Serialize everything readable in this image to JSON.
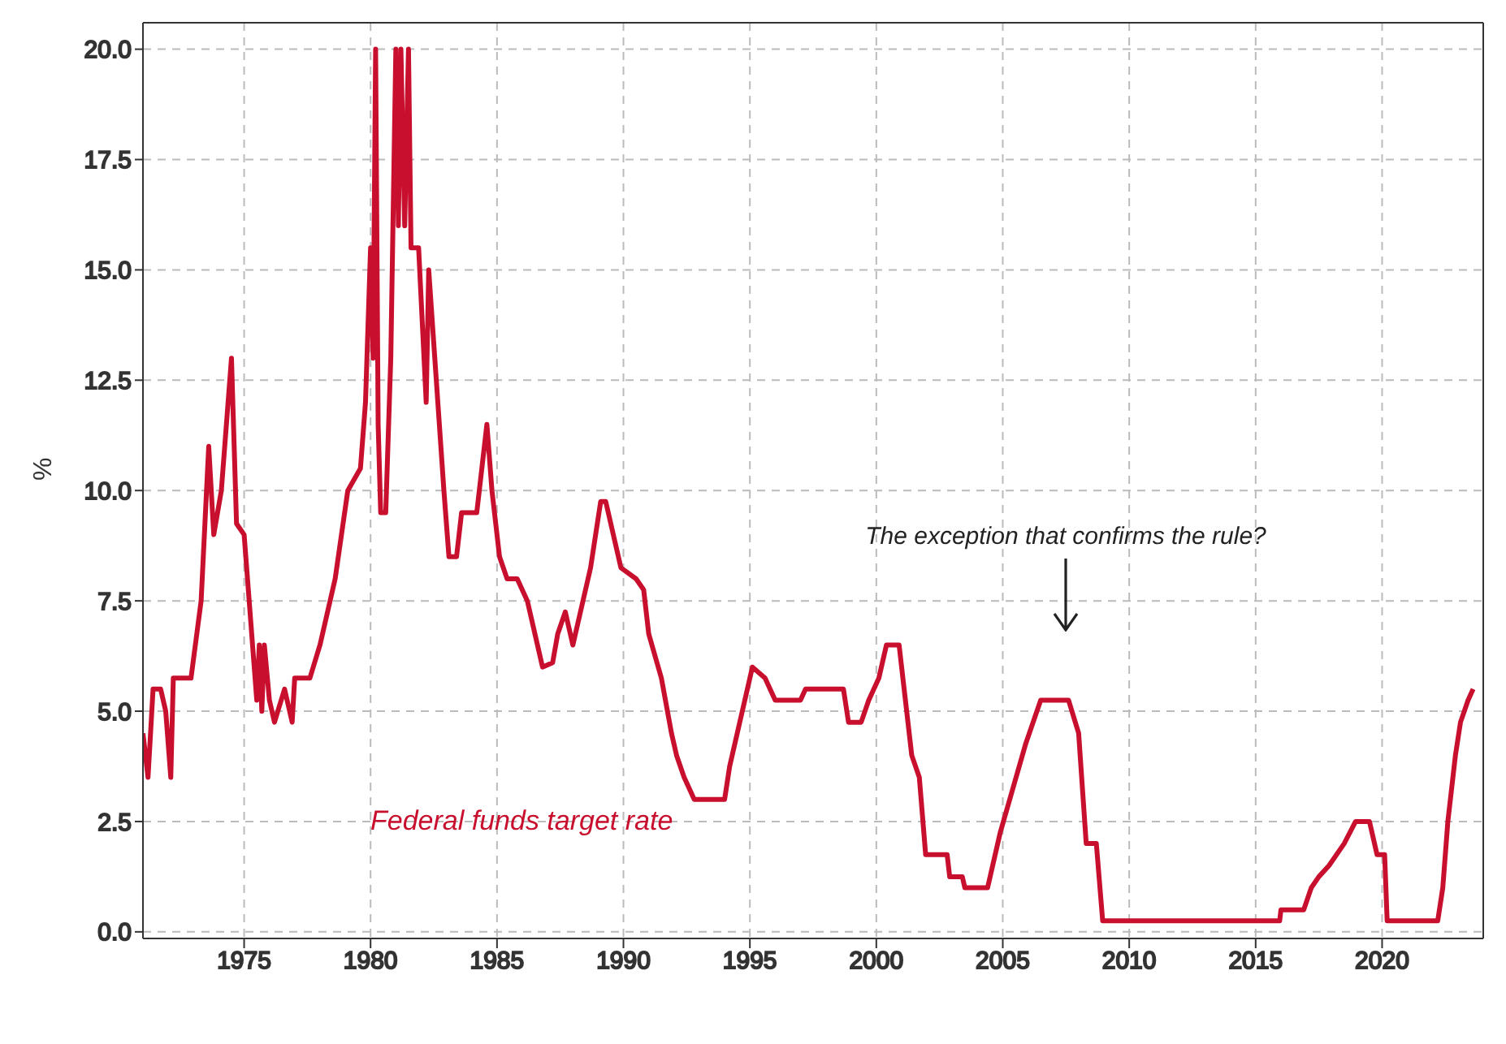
{
  "chart_data": {
    "type": "line",
    "ylabel": "%",
    "xlim": [
      1971,
      2024
    ],
    "xticks": [
      1975,
      1980,
      1985,
      1990,
      1995,
      2000,
      2005,
      2010,
      2015,
      2020
    ],
    "ylim": [
      -0.15,
      20.6
    ],
    "yticks": [
      {
        "value": 0,
        "label": "0.0"
      },
      {
        "value": 2.5,
        "label": "2.5"
      },
      {
        "value": 5,
        "label": "5.0"
      },
      {
        "value": 7.5,
        "label": "7.5"
      },
      {
        "value": 10,
        "label": "10.0"
      },
      {
        "value": 12.5,
        "label": "12.5"
      },
      {
        "value": 15,
        "label": "15.0"
      },
      {
        "value": 17.5,
        "label": "17.5"
      },
      {
        "value": 20,
        "label": "20.0"
      }
    ],
    "grid": true,
    "legend": false,
    "marker": "none",
    "line_style": "solid",
    "annotations": [
      "The exception that confirms the rule?"
    ],
    "series": [
      {
        "name": "Federal funds target rate",
        "color": "#c8102e",
        "x": [
          1971.0,
          1971.2,
          1971.4,
          1971.7,
          1971.9,
          1972.1,
          1972.2,
          1972.9,
          1973.3,
          1973.6,
          1973.8,
          1974.1,
          1974.5,
          1974.7,
          1975.0,
          1975.5,
          1975.6,
          1975.7,
          1975.8,
          1976.0,
          1976.2,
          1976.6,
          1976.9,
          1977.0,
          1977.6,
          1978.0,
          1978.6,
          1979.1,
          1979.6,
          1979.8,
          1980.0,
          1980.1,
          1980.2,
          1980.3,
          1980.4,
          1980.6,
          1980.8,
          1981.0,
          1981.1,
          1981.2,
          1981.35,
          1981.5,
          1981.6,
          1981.9,
          1982.2,
          1982.3,
          1982.6,
          1982.9,
          1983.1,
          1983.4,
          1983.6,
          1984.2,
          1984.4,
          1984.6,
          1984.8,
          1985.1,
          1985.4,
          1985.8,
          1986.2,
          1986.6,
          1986.8,
          1987.2,
          1987.4,
          1987.7,
          1988.0,
          1988.4,
          1988.7,
          1989.1,
          1989.3,
          1989.6,
          1989.9,
          1990.5,
          1990.8,
          1991.0,
          1991.5,
          1991.9,
          1992.1,
          1992.4,
          1992.8,
          1994.0,
          1994.2,
          1994.6,
          1994.9,
          1995.1,
          1995.6,
          1996.0,
          1997.0,
          1997.2,
          1998.7,
          1998.9,
          1999.4,
          1999.7,
          2000.1,
          2000.4,
          2000.9,
          2001.1,
          2001.4,
          2001.7,
          2001.95,
          2002.8,
          2002.9,
          2003.4,
          2003.5,
          2004.4,
          2004.9,
          2005.9,
          2006.5,
          2007.6,
          2008.0,
          2008.3,
          2008.7,
          2008.95,
          2015.95,
          2016.0,
          2016.9,
          2017.2,
          2017.5,
          2017.9,
          2018.5,
          2018.95,
          2019.5,
          2019.8,
          2020.1,
          2020.2,
          2022.2,
          2022.4,
          2022.6,
          2022.9,
          2023.1,
          2023.4,
          2023.6
        ],
        "values": [
          4.5,
          3.5,
          5.5,
          5.5,
          5.0,
          3.5,
          5.75,
          5.75,
          7.5,
          11,
          9,
          10,
          13,
          9.25,
          9,
          5.25,
          6.5,
          5,
          6.5,
          5.25,
          4.75,
          5.5,
          4.75,
          5.75,
          5.75,
          6.5,
          8,
          10,
          10.5,
          12,
          15.5,
          13,
          20,
          11.5,
          9.5,
          9.5,
          13,
          20,
          16,
          20,
          16,
          20,
          15.5,
          15.5,
          12,
          15,
          12.5,
          10,
          8.5,
          8.5,
          9.5,
          9.5,
          10.5,
          11.5,
          10,
          8.5,
          8,
          8,
          7.5,
          6.5,
          6,
          6.1,
          6.75,
          7.25,
          6.5,
          7.5,
          8.25,
          9.75,
          9.75,
          9,
          8.25,
          8,
          7.75,
          6.75,
          5.75,
          4.5,
          4,
          3.5,
          3,
          3,
          3.75,
          4.75,
          5.5,
          6,
          5.75,
          5.25,
          5.25,
          5.5,
          5.5,
          4.75,
          4.75,
          5.25,
          5.75,
          6.5,
          6.5,
          5.5,
          4,
          3.5,
          1.75,
          1.75,
          1.25,
          1.25,
          1,
          1,
          2.25,
          4.25,
          5.25,
          5.25,
          4.5,
          2,
          2,
          0.25,
          0.25,
          0.5,
          0.5,
          1,
          1.25,
          1.5,
          2,
          2.5,
          2.5,
          1.75,
          1.75,
          0.25,
          0.25,
          1,
          2.5,
          4,
          4.75,
          5.25,
          5.5
        ]
      }
    ]
  }
}
